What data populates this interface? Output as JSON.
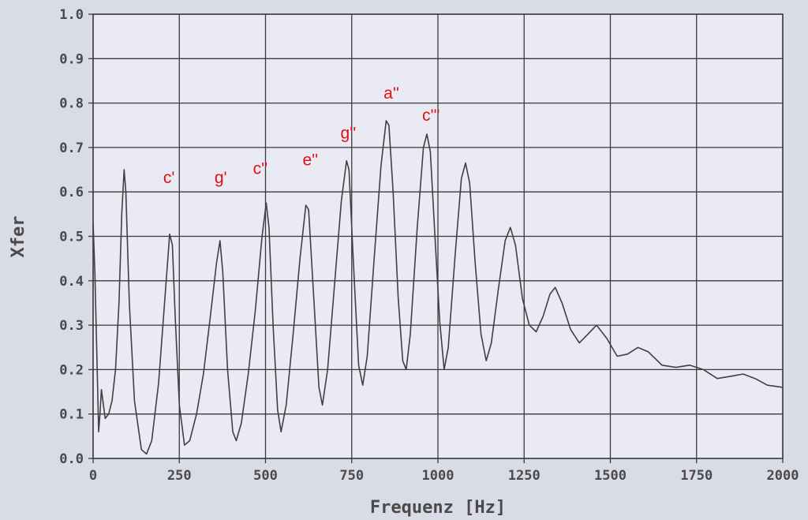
{
  "chart_data": {
    "type": "line",
    "title": "",
    "xlabel": "Frequenz [Hz]",
    "ylabel": "Xfer",
    "xlim": [
      0,
      2000
    ],
    "ylim": [
      0,
      1.0
    ],
    "grid": true,
    "colors": {
      "background": "#d9dbe6",
      "plot_area": "#e9eaf4",
      "grid": "#3a3a3a",
      "line": "#404040",
      "tick_text": "#4a4a4a",
      "annotation": "#e01010"
    },
    "x_ticks": [
      {
        "value": 0,
        "label": "0"
      },
      {
        "value": 250,
        "label": "250"
      },
      {
        "value": 500,
        "label": "500"
      },
      {
        "value": 750,
        "label": "750"
      },
      {
        "value": 1000,
        "label": "1000"
      },
      {
        "value": 1250,
        "label": "1250"
      },
      {
        "value": 1500,
        "label": "1500"
      },
      {
        "value": 1750,
        "label": "1750"
      },
      {
        "value": 2000,
        "label": "2000"
      }
    ],
    "y_ticks": [
      {
        "value": 0.0,
        "label": "0.0"
      },
      {
        "value": 0.1,
        "label": "0.1"
      },
      {
        "value": 0.2,
        "label": "0.2"
      },
      {
        "value": 0.3,
        "label": "0.3"
      },
      {
        "value": 0.4,
        "label": "0.4"
      },
      {
        "value": 0.5,
        "label": "0.5"
      },
      {
        "value": 0.6,
        "label": "0.6"
      },
      {
        "value": 0.7,
        "label": "0.7"
      },
      {
        "value": 0.8,
        "label": "0.8"
      },
      {
        "value": 0.9,
        "label": "0.9"
      },
      {
        "value": 1.0,
        "label": "1.0"
      }
    ],
    "annotations": [
      {
        "text": "c'",
        "x": 220,
        "y": 0.62
      },
      {
        "text": "g'",
        "x": 370,
        "y": 0.62
      },
      {
        "text": "c''",
        "x": 485,
        "y": 0.64
      },
      {
        "text": "e''",
        "x": 630,
        "y": 0.66
      },
      {
        "text": "g''",
        "x": 740,
        "y": 0.72
      },
      {
        "text": "a''",
        "x": 865,
        "y": 0.81
      },
      {
        "text": "c'''",
        "x": 980,
        "y": 0.76
      }
    ],
    "series": [
      {
        "values": [
          {
            "x": 0,
            "y": 0.53
          },
          {
            "x": 5,
            "y": 0.42
          },
          {
            "x": 12,
            "y": 0.2
          },
          {
            "x": 16,
            "y": 0.06
          },
          {
            "x": 20,
            "y": 0.1
          },
          {
            "x": 24,
            "y": 0.155
          },
          {
            "x": 30,
            "y": 0.12
          },
          {
            "x": 35,
            "y": 0.09
          },
          {
            "x": 45,
            "y": 0.1
          },
          {
            "x": 55,
            "y": 0.13
          },
          {
            "x": 65,
            "y": 0.2
          },
          {
            "x": 75,
            "y": 0.35
          },
          {
            "x": 83,
            "y": 0.55
          },
          {
            "x": 90,
            "y": 0.65
          },
          {
            "x": 95,
            "y": 0.6
          },
          {
            "x": 105,
            "y": 0.35
          },
          {
            "x": 120,
            "y": 0.13
          },
          {
            "x": 140,
            "y": 0.02
          },
          {
            "x": 155,
            "y": 0.01
          },
          {
            "x": 170,
            "y": 0.04
          },
          {
            "x": 190,
            "y": 0.17
          },
          {
            "x": 210,
            "y": 0.38
          },
          {
            "x": 222,
            "y": 0.505
          },
          {
            "x": 230,
            "y": 0.48
          },
          {
            "x": 238,
            "y": 0.32
          },
          {
            "x": 250,
            "y": 0.12
          },
          {
            "x": 265,
            "y": 0.03
          },
          {
            "x": 280,
            "y": 0.04
          },
          {
            "x": 300,
            "y": 0.1
          },
          {
            "x": 320,
            "y": 0.19
          },
          {
            "x": 340,
            "y": 0.32
          },
          {
            "x": 358,
            "y": 0.44
          },
          {
            "x": 368,
            "y": 0.49
          },
          {
            "x": 376,
            "y": 0.42
          },
          {
            "x": 390,
            "y": 0.2
          },
          {
            "x": 405,
            "y": 0.06
          },
          {
            "x": 415,
            "y": 0.04
          },
          {
            "x": 430,
            "y": 0.08
          },
          {
            "x": 450,
            "y": 0.19
          },
          {
            "x": 470,
            "y": 0.33
          },
          {
            "x": 490,
            "y": 0.5
          },
          {
            "x": 502,
            "y": 0.575
          },
          {
            "x": 510,
            "y": 0.52
          },
          {
            "x": 522,
            "y": 0.3
          },
          {
            "x": 535,
            "y": 0.11
          },
          {
            "x": 545,
            "y": 0.06
          },
          {
            "x": 560,
            "y": 0.12
          },
          {
            "x": 580,
            "y": 0.28
          },
          {
            "x": 600,
            "y": 0.45
          },
          {
            "x": 617,
            "y": 0.57
          },
          {
            "x": 625,
            "y": 0.56
          },
          {
            "x": 640,
            "y": 0.36
          },
          {
            "x": 655,
            "y": 0.16
          },
          {
            "x": 665,
            "y": 0.12
          },
          {
            "x": 680,
            "y": 0.2
          },
          {
            "x": 700,
            "y": 0.39
          },
          {
            "x": 720,
            "y": 0.58
          },
          {
            "x": 735,
            "y": 0.67
          },
          {
            "x": 742,
            "y": 0.65
          },
          {
            "x": 755,
            "y": 0.44
          },
          {
            "x": 770,
            "y": 0.21
          },
          {
            "x": 782,
            "y": 0.165
          },
          {
            "x": 795,
            "y": 0.23
          },
          {
            "x": 815,
            "y": 0.45
          },
          {
            "x": 835,
            "y": 0.66
          },
          {
            "x": 850,
            "y": 0.76
          },
          {
            "x": 858,
            "y": 0.75
          },
          {
            "x": 870,
            "y": 0.6
          },
          {
            "x": 885,
            "y": 0.36
          },
          {
            "x": 898,
            "y": 0.22
          },
          {
            "x": 908,
            "y": 0.2
          },
          {
            "x": 920,
            "y": 0.28
          },
          {
            "x": 940,
            "y": 0.52
          },
          {
            "x": 958,
            "y": 0.7
          },
          {
            "x": 968,
            "y": 0.73
          },
          {
            "x": 978,
            "y": 0.69
          },
          {
            "x": 990,
            "y": 0.52
          },
          {
            "x": 1005,
            "y": 0.31
          },
          {
            "x": 1018,
            "y": 0.2
          },
          {
            "x": 1030,
            "y": 0.25
          },
          {
            "x": 1050,
            "y": 0.46
          },
          {
            "x": 1068,
            "y": 0.63
          },
          {
            "x": 1080,
            "y": 0.665
          },
          {
            "x": 1092,
            "y": 0.62
          },
          {
            "x": 1108,
            "y": 0.44
          },
          {
            "x": 1125,
            "y": 0.28
          },
          {
            "x": 1140,
            "y": 0.22
          },
          {
            "x": 1155,
            "y": 0.26
          },
          {
            "x": 1175,
            "y": 0.38
          },
          {
            "x": 1195,
            "y": 0.49
          },
          {
            "x": 1210,
            "y": 0.52
          },
          {
            "x": 1225,
            "y": 0.48
          },
          {
            "x": 1245,
            "y": 0.36
          },
          {
            "x": 1265,
            "y": 0.3
          },
          {
            "x": 1285,
            "y": 0.285
          },
          {
            "x": 1305,
            "y": 0.32
          },
          {
            "x": 1325,
            "y": 0.37
          },
          {
            "x": 1340,
            "y": 0.385
          },
          {
            "x": 1360,
            "y": 0.35
          },
          {
            "x": 1385,
            "y": 0.29
          },
          {
            "x": 1410,
            "y": 0.26
          },
          {
            "x": 1435,
            "y": 0.28
          },
          {
            "x": 1460,
            "y": 0.3
          },
          {
            "x": 1490,
            "y": 0.27
          },
          {
            "x": 1520,
            "y": 0.23
          },
          {
            "x": 1550,
            "y": 0.235
          },
          {
            "x": 1580,
            "y": 0.25
          },
          {
            "x": 1610,
            "y": 0.24
          },
          {
            "x": 1650,
            "y": 0.21
          },
          {
            "x": 1690,
            "y": 0.205
          },
          {
            "x": 1730,
            "y": 0.21
          },
          {
            "x": 1770,
            "y": 0.2
          },
          {
            "x": 1810,
            "y": 0.18
          },
          {
            "x": 1850,
            "y": 0.185
          },
          {
            "x": 1885,
            "y": 0.19
          },
          {
            "x": 1920,
            "y": 0.18
          },
          {
            "x": 1955,
            "y": 0.165
          },
          {
            "x": 2000,
            "y": 0.16
          }
        ]
      }
    ]
  }
}
